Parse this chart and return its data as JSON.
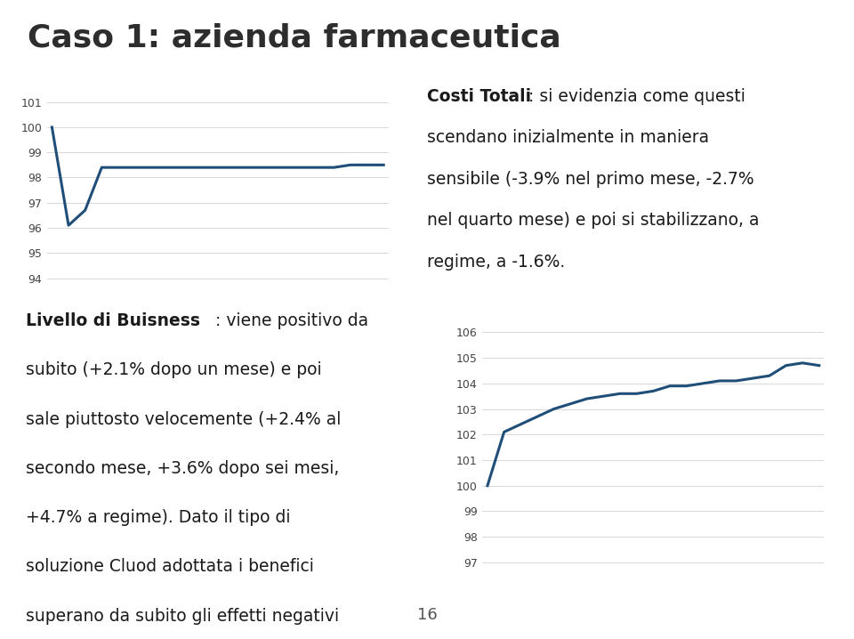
{
  "title": "Caso 1: azienda farmaceutica",
  "title_fontsize": 26,
  "title_color": "#2D2D2D",
  "background_color": "#ffffff",
  "line_color": "#1F4E79",
  "line_width": 2.2,
  "chart1": {
    "yticks": [
      101,
      100,
      99,
      98,
      97,
      96,
      95,
      94
    ],
    "ylim": [
      93.5,
      101.5
    ],
    "data_x": [
      0,
      1,
      2,
      3,
      4,
      5,
      6,
      7,
      8,
      9,
      10,
      11,
      12,
      13,
      14,
      15,
      16,
      17,
      18,
      19,
      20
    ],
    "data_y": [
      100.0,
      96.1,
      96.7,
      98.4,
      98.4,
      98.4,
      98.4,
      98.4,
      98.4,
      98.4,
      98.4,
      98.4,
      98.4,
      98.4,
      98.4,
      98.4,
      98.4,
      98.4,
      98.5,
      98.5,
      98.5
    ]
  },
  "chart2": {
    "yticks": [
      106,
      105,
      104,
      103,
      102,
      101,
      100,
      99,
      98,
      97
    ],
    "ylim": [
      96.5,
      106.5
    ],
    "data_x": [
      0,
      1,
      2,
      3,
      4,
      5,
      6,
      7,
      8,
      9,
      10,
      11,
      12,
      13,
      14,
      15,
      16,
      17,
      18,
      19,
      20
    ],
    "data_y": [
      100.0,
      102.1,
      102.4,
      102.7,
      103.0,
      103.2,
      103.4,
      103.5,
      103.6,
      103.6,
      103.7,
      103.9,
      103.9,
      104.0,
      104.1,
      104.1,
      104.2,
      104.3,
      104.7,
      104.8,
      104.7
    ]
  },
  "divider_gray_color": "#808080",
  "divider_green_color": "#76923C",
  "page_number": "16",
  "grid_color": "#D8D8D8",
  "tick_fontsize": 9,
  "tick_color": "#444444",
  "text_color": "#1A1A1A",
  "text_fontsize": 13.5
}
